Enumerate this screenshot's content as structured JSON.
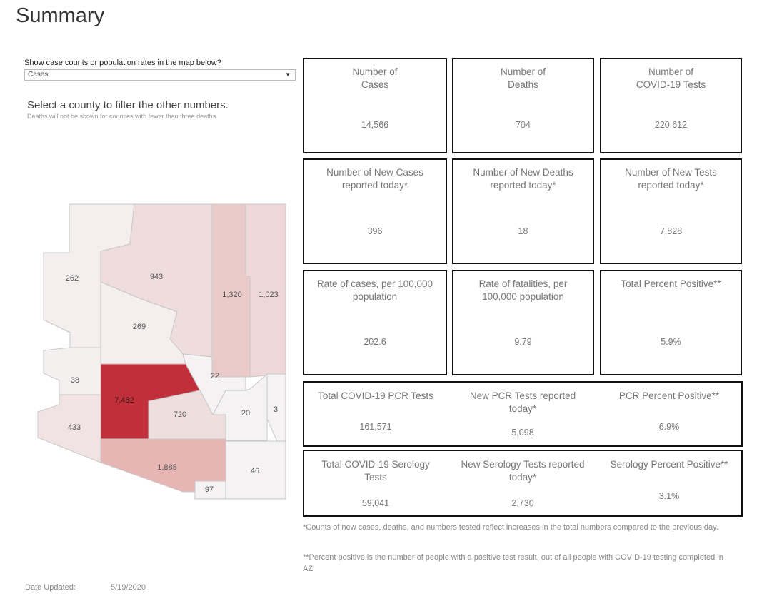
{
  "page": {
    "title": "Summary"
  },
  "controls": {
    "map_selector_label": "Show case counts or population rates in the map below?",
    "map_selector_value": "Cases",
    "instruction": "Select a county to filter the other numbers.",
    "instruction_note": "Deaths will not be shown for counties with fewer than three deaths."
  },
  "map": {
    "counties": [
      {
        "id": "mohave",
        "value": "262",
        "color": "#f4eeee"
      },
      {
        "id": "coconino",
        "value": "943",
        "color": "#efdcdc"
      },
      {
        "id": "navajo",
        "value": "1,320",
        "color": "#ebcaca"
      },
      {
        "id": "apache",
        "value": "1,023",
        "color": "#efd7d7"
      },
      {
        "id": "yavapai",
        "value": "269",
        "color": "#f4eeee"
      },
      {
        "id": "la-paz",
        "value": "38",
        "color": "#f4f0f0"
      },
      {
        "id": "maricopa",
        "value": "7,482",
        "color": "#c1303a"
      },
      {
        "id": "gila",
        "value": "22",
        "color": "#f4f2f2"
      },
      {
        "id": "yuma",
        "value": "433",
        "color": "#f1e3e3"
      },
      {
        "id": "pinal",
        "value": "720",
        "color": "#efdede"
      },
      {
        "id": "graham",
        "value": "20",
        "color": "#f4f2f2"
      },
      {
        "id": "greenlee",
        "value": "3",
        "color": "#f4f2f2"
      },
      {
        "id": "pima",
        "value": "1,888",
        "color": "#e8b5b5"
      },
      {
        "id": "santa-cruz",
        "value": "97",
        "color": "#f4f2f2"
      },
      {
        "id": "cochise",
        "value": "46",
        "color": "#f4f2f2"
      }
    ]
  },
  "tiles": [
    {
      "label": "Number of\nCases",
      "value": "14,566"
    },
    {
      "label": "Number of\nDeaths",
      "value": "704"
    },
    {
      "label": "Number of\nCOVID-19 Tests",
      "value": "220,612"
    },
    {
      "label": "Number of New Cases reported today*",
      "value": "396"
    },
    {
      "label": "Number of New Deaths reported today*",
      "value": "18"
    },
    {
      "label": "Number of New Tests reported today*",
      "value": "7,828"
    },
    {
      "label": "Rate of cases, per 100,000 population",
      "value": "202.6"
    },
    {
      "label": "Rate of fatalities, per 100,000 population",
      "value": "9.79"
    },
    {
      "label": "Total Percent Positive**",
      "value": "5.9%"
    }
  ],
  "pcr": [
    {
      "label": "Total COVID-19 PCR Tests",
      "value": "161,571"
    },
    {
      "label": "New PCR Tests reported today*",
      "value": "5,098"
    },
    {
      "label": "PCR Percent Positive**",
      "value": "6.9%"
    }
  ],
  "serology": [
    {
      "label": "Total COVID-19 Serology Tests",
      "value": "59,041"
    },
    {
      "label": "New Serology Tests reported today*",
      "value": "2,730"
    },
    {
      "label": "Serology Percent Positive**",
      "value": "3.1%"
    }
  ],
  "footnotes": {
    "note1": "*Counts of new cases, deaths, and numbers tested reflect increases in the total numbers compared to the previous day.",
    "note2": "**Percent positive is the number of people with a positive test result, out of all people with COVID-19 testing completed in AZ."
  },
  "date": {
    "label": "Date Updated:",
    "value": "5/19/2020"
  }
}
